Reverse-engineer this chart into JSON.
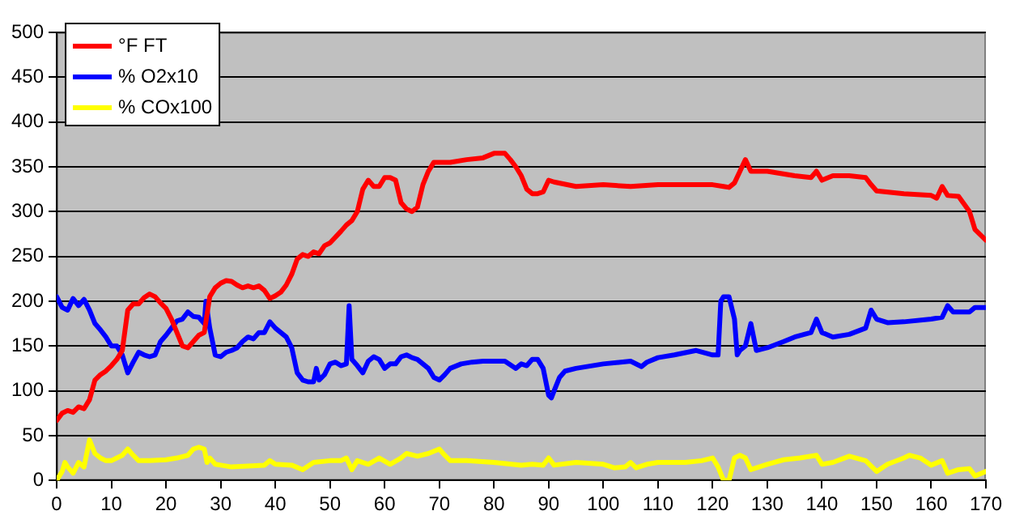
{
  "chart_data": {
    "type": "line",
    "xlim": [
      0,
      170
    ],
    "xticks": [
      0,
      10,
      20,
      30,
      40,
      50,
      60,
      70,
      80,
      90,
      100,
      110,
      120,
      130,
      140,
      150,
      160,
      170
    ],
    "ylim": [
      0,
      500
    ],
    "yticks": [
      0,
      50,
      100,
      150,
      200,
      250,
      300,
      350,
      400,
      450,
      500
    ],
    "grid": "y",
    "legend": "top left",
    "marker": "none",
    "line_style": "solid",
    "series": [
      {
        "name": "°F FT",
        "color": "#ff0000",
        "x": [
          0,
          1,
          2,
          3,
          4,
          5,
          6,
          7,
          8,
          9,
          10,
          11,
          12,
          13,
          14,
          15,
          16,
          17,
          18,
          19,
          20,
          21,
          22,
          23,
          24,
          25,
          26,
          27,
          28,
          29,
          30,
          31,
          32,
          33,
          34,
          35,
          36,
          37,
          38,
          39,
          40,
          41,
          42,
          43,
          44,
          45,
          46,
          47,
          48,
          49,
          50,
          52,
          53,
          54,
          55,
          56,
          57,
          58,
          59,
          60,
          61,
          62,
          63,
          64,
          65,
          66,
          67,
          68,
          69,
          70,
          72,
          75,
          78,
          80,
          82,
          83,
          84,
          85,
          86,
          87,
          88,
          89,
          90,
          91,
          95,
          100,
          105,
          110,
          115,
          120,
          122,
          123,
          124,
          125,
          126,
          127,
          130,
          135,
          138,
          139,
          140,
          142,
          145,
          148,
          149,
          150,
          155,
          160,
          161,
          162,
          163,
          165,
          167,
          168,
          170
        ],
        "values": [
          67,
          75,
          78,
          76,
          82,
          80,
          90,
          112,
          118,
          122,
          128,
          135,
          145,
          190,
          197,
          197,
          204,
          208,
          205,
          198,
          192,
          180,
          165,
          150,
          148,
          155,
          162,
          165,
          205,
          215,
          220,
          223,
          222,
          218,
          215,
          217,
          215,
          217,
          212,
          203,
          206,
          210,
          218,
          230,
          247,
          252,
          250,
          255,
          253,
          262,
          265,
          278,
          285,
          290,
          300,
          325,
          335,
          328,
          328,
          338,
          338,
          335,
          310,
          303,
          300,
          305,
          330,
          345,
          355,
          355,
          355,
          358,
          360,
          365,
          365,
          358,
          350,
          340,
          325,
          320,
          320,
          322,
          335,
          333,
          328,
          330,
          328,
          330,
          330,
          330,
          328,
          327,
          332,
          345,
          358,
          345,
          345,
          340,
          338,
          345,
          335,
          340,
          340,
          338,
          330,
          323,
          320,
          318,
          315,
          328,
          318,
          317,
          300,
          280,
          268
        ]
      },
      {
        "name": "% O2x10",
        "color": "#0000ff",
        "x": [
          0,
          1,
          2,
          3,
          4,
          5,
          6,
          7,
          8,
          9,
          10,
          11,
          12,
          13,
          14,
          15,
          16,
          17,
          18,
          19,
          20,
          21,
          22,
          23,
          24,
          25,
          26,
          27,
          27.3,
          28,
          29,
          30,
          31,
          32,
          33,
          34,
          35,
          36,
          37,
          38,
          39,
          40,
          41,
          42,
          43,
          44,
          45,
          46,
          47,
          47.5,
          48,
          49,
          50,
          51,
          52,
          53,
          53.5,
          54,
          55,
          56,
          57,
          58,
          59,
          60,
          61,
          62,
          63,
          64,
          65,
          66,
          67,
          68,
          69,
          70,
          71,
          72,
          74,
          76,
          78,
          80,
          82,
          84,
          85,
          86,
          87,
          88,
          89,
          90,
          90.5,
          91,
          92,
          93,
          95,
          100,
          105,
          107,
          108,
          110,
          113,
          117,
          120,
          121,
          121.5,
          122,
          123,
          124,
          124.5,
          125,
          126,
          127,
          128,
          130,
          133,
          135,
          138,
          139,
          140,
          142,
          145,
          148,
          149,
          150,
          152,
          155,
          160,
          162,
          163,
          164,
          167,
          168,
          170
        ],
        "values": [
          205,
          193,
          190,
          203,
          195,
          202,
          190,
          175,
          168,
          160,
          150,
          150,
          140,
          120,
          132,
          143,
          140,
          138,
          140,
          155,
          162,
          170,
          178,
          180,
          188,
          183,
          182,
          175,
          200,
          170,
          140,
          138,
          143,
          145,
          148,
          155,
          160,
          158,
          165,
          165,
          177,
          170,
          165,
          160,
          148,
          120,
          112,
          110,
          110,
          125,
          112,
          118,
          130,
          132,
          128,
          130,
          195,
          135,
          128,
          120,
          133,
          138,
          135,
          125,
          130,
          130,
          138,
          140,
          137,
          135,
          130,
          125,
          115,
          112,
          118,
          125,
          130,
          132,
          133,
          133,
          133,
          125,
          130,
          128,
          135,
          135,
          125,
          95,
          92,
          100,
          115,
          122,
          125,
          130,
          133,
          127,
          132,
          137,
          140,
          145,
          140,
          140,
          200,
          205,
          205,
          180,
          140,
          145,
          150,
          175,
          145,
          148,
          155,
          160,
          165,
          180,
          165,
          160,
          163,
          170,
          190,
          180,
          176,
          177,
          180,
          182,
          195,
          188,
          188,
          193,
          193
        ]
      },
      {
        "name": "% COx100",
        "color": "#ffff00",
        "x": [
          0,
          1,
          1.5,
          2,
          3,
          4,
          5,
          6,
          7,
          8,
          9,
          10,
          11,
          12,
          13,
          14,
          15,
          17,
          20,
          22,
          24,
          25,
          26,
          27,
          27.5,
          28,
          29,
          30,
          32,
          35,
          38,
          39,
          40,
          43,
          45,
          47,
          50,
          52,
          53,
          54,
          55,
          57,
          59,
          61,
          63,
          64,
          66,
          68,
          70,
          71,
          72,
          75,
          80,
          85,
          87,
          89,
          90,
          91,
          95,
          100,
          102,
          104,
          105,
          106,
          108,
          110,
          115,
          118,
          120,
          121,
          122,
          123,
          124,
          125,
          126,
          127,
          130,
          133,
          136,
          139,
          140,
          142,
          145,
          148,
          150,
          152,
          155,
          156,
          158,
          160,
          162,
          163,
          165,
          167,
          168,
          170
        ],
        "values": [
          0,
          10,
          20,
          15,
          8,
          20,
          15,
          45,
          30,
          25,
          22,
          22,
          25,
          28,
          35,
          28,
          22,
          22,
          23,
          25,
          28,
          35,
          37,
          35,
          20,
          25,
          18,
          17,
          15,
          16,
          17,
          22,
          18,
          17,
          12,
          20,
          22,
          22,
          25,
          12,
          22,
          18,
          25,
          18,
          25,
          30,
          27,
          30,
          35,
          28,
          22,
          22,
          20,
          17,
          18,
          17,
          25,
          17,
          20,
          18,
          14,
          15,
          20,
          14,
          18,
          20,
          20,
          22,
          25,
          15,
          0,
          0,
          25,
          28,
          25,
          12,
          18,
          23,
          25,
          28,
          18,
          20,
          27,
          22,
          10,
          18,
          25,
          28,
          25,
          17,
          22,
          8,
          12,
          13,
          5,
          10
        ]
      }
    ]
  }
}
